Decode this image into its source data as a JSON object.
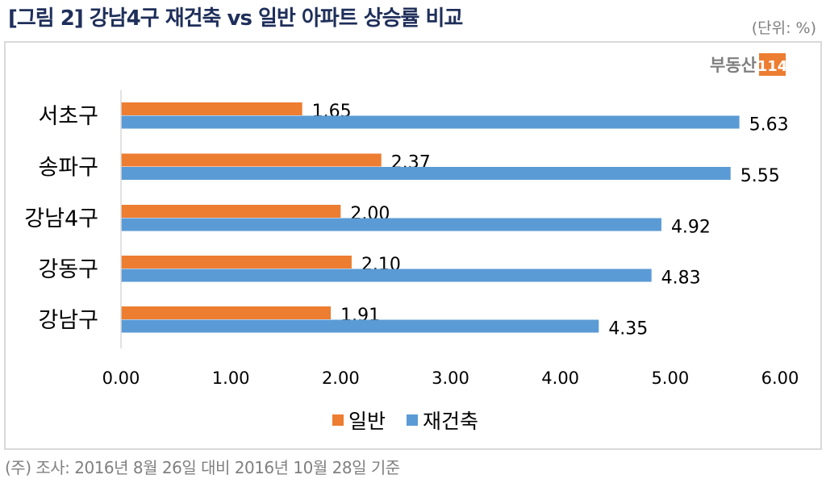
{
  "title": "[그림 2] 강남4구 재건축 vs 일반 아파트 상승률 비교",
  "unit": "(단위: %)",
  "footnote": "(주) 조사: 2016년 8월 26일 대비 2016년 10월 28일 기준",
  "logo": {
    "text": "부동산",
    "badge": "114",
    "badge_color": "#ed7d31"
  },
  "chart_data": {
    "type": "bar",
    "orientation": "horizontal",
    "categories": [
      "서초구",
      "송파구",
      "강남4구",
      "강동구",
      "강남구"
    ],
    "series": [
      {
        "name": "일반",
        "color": "#ed7d31",
        "values": [
          1.65,
          2.37,
          2.0,
          2.1,
          1.91
        ]
      },
      {
        "name": "재건축",
        "color": "#5b9bd5",
        "values": [
          5.63,
          5.55,
          4.92,
          4.83,
          4.35
        ]
      }
    ],
    "xlim": [
      0,
      6
    ],
    "xticks": [
      "0.00",
      "1.00",
      "2.00",
      "3.00",
      "4.00",
      "5.00",
      "6.00"
    ],
    "grid": false,
    "legend": "bottom",
    "data_labels": true
  }
}
